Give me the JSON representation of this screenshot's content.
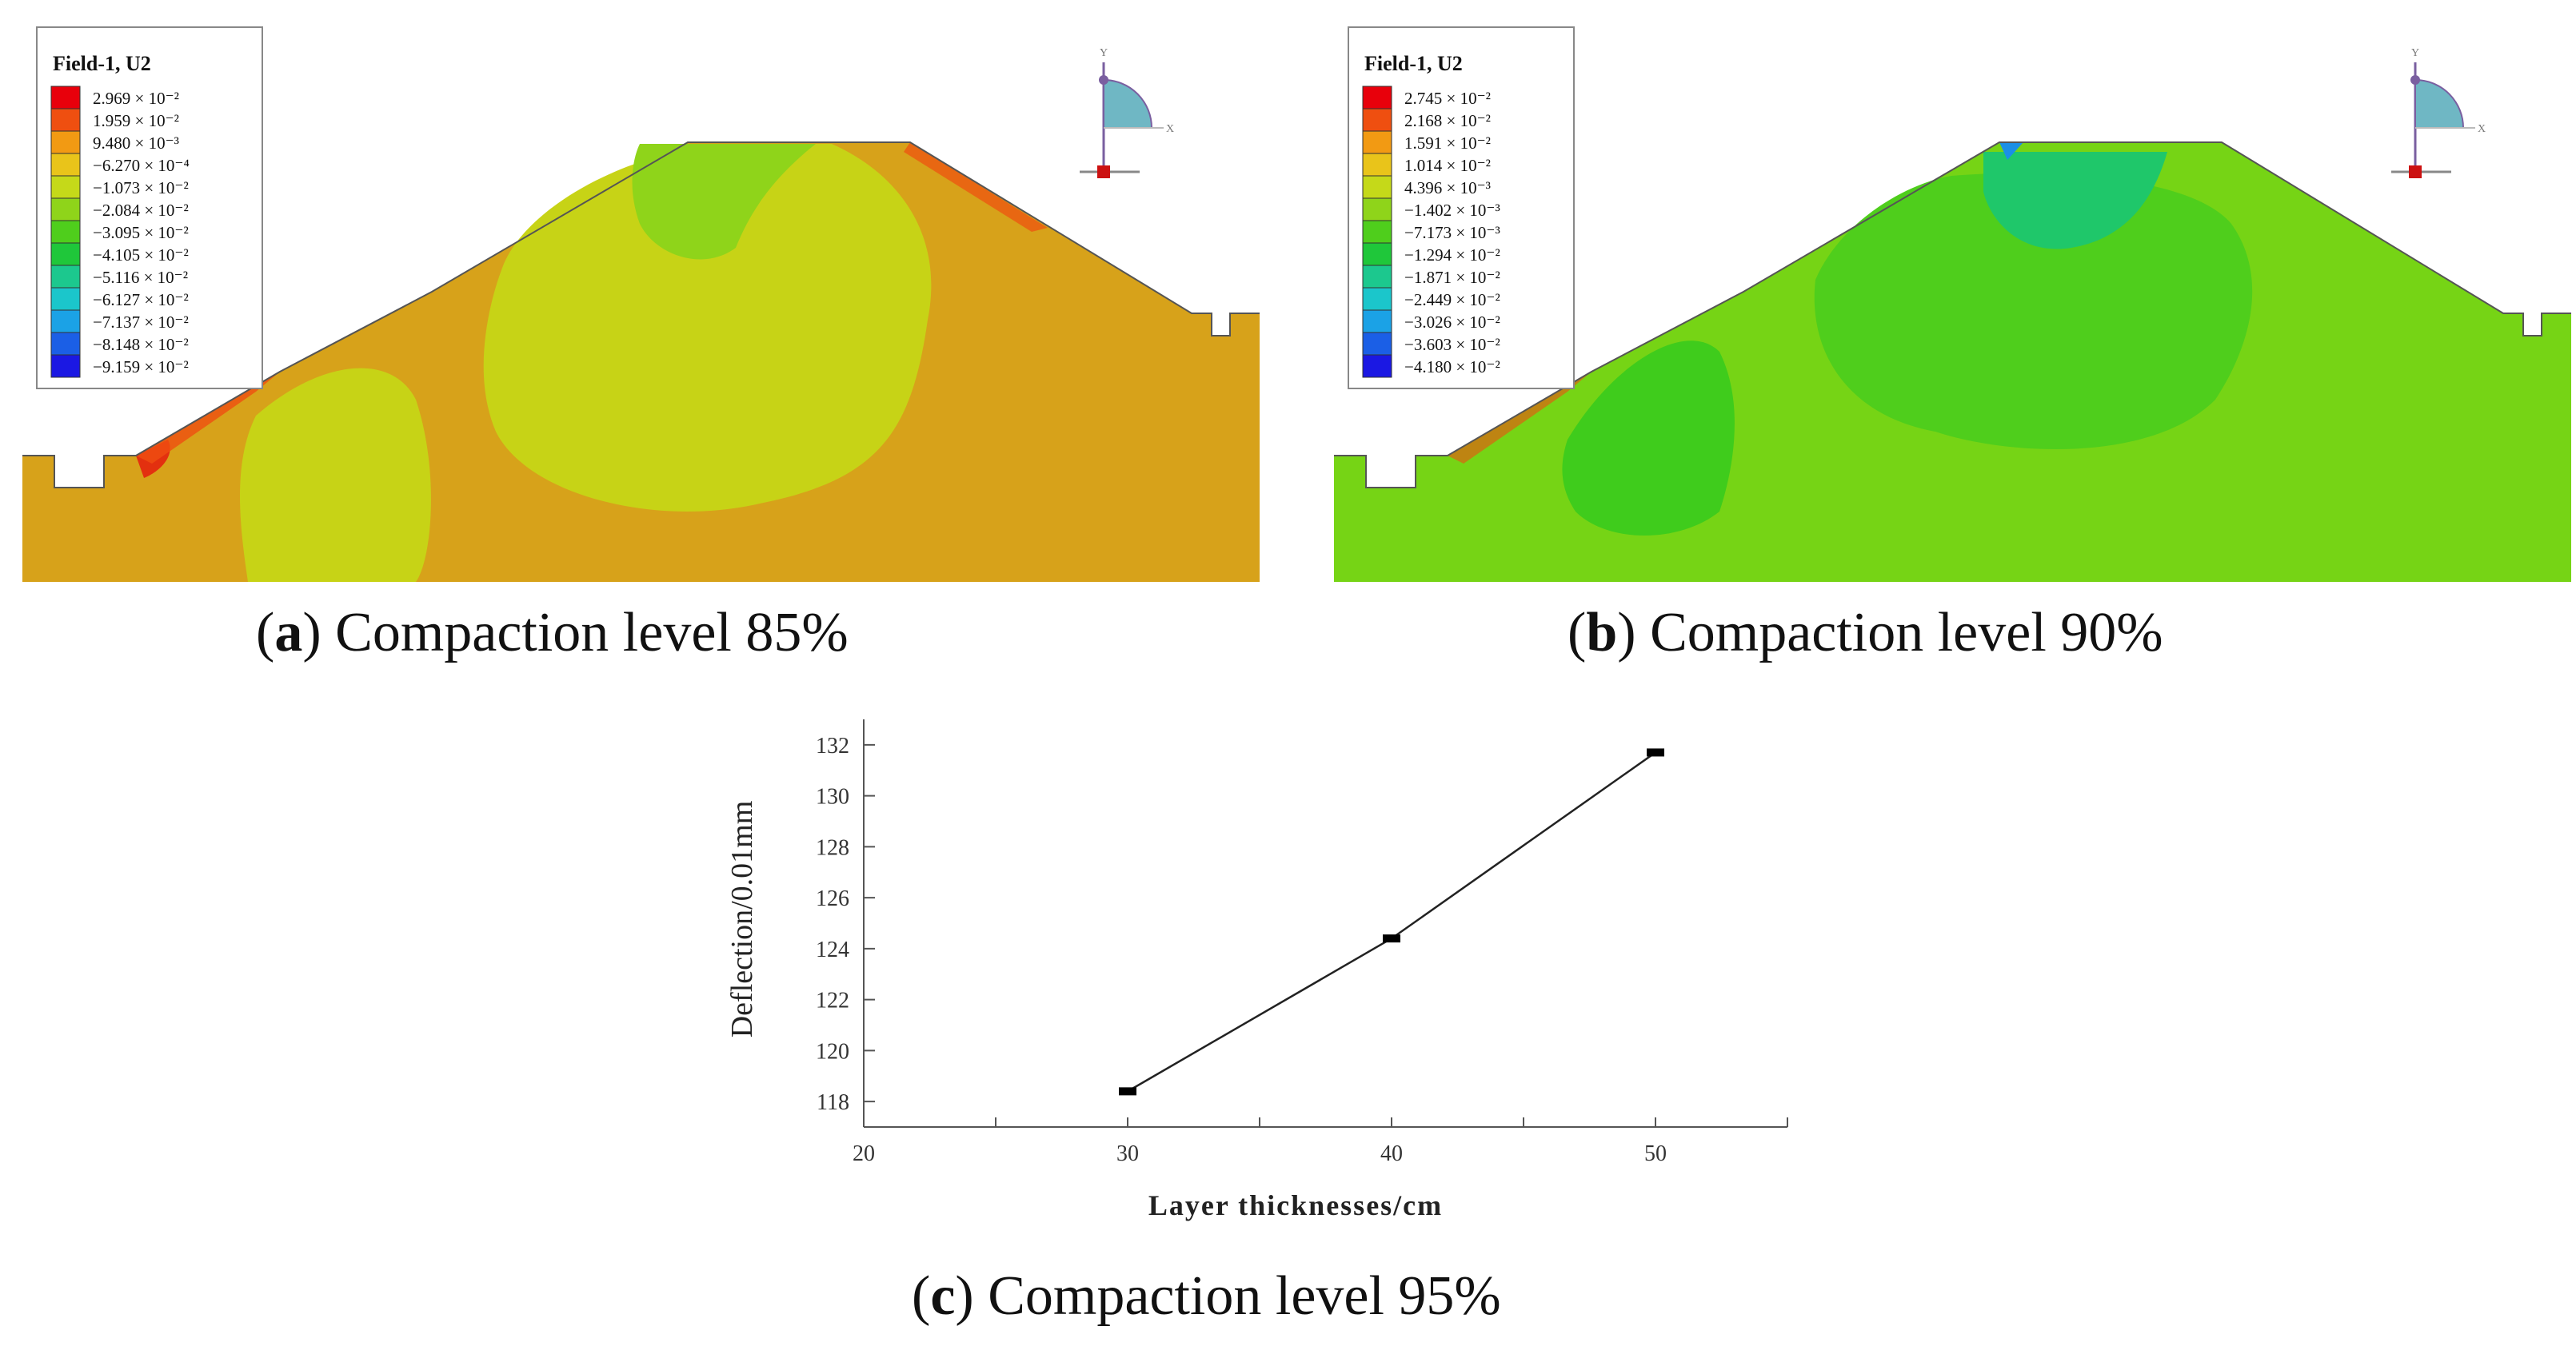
{
  "panels": [
    {
      "id": "a",
      "caption_letter": "a",
      "caption_text": "Compaction level 85%",
      "legend": {
        "title": "Field-1, U2",
        "entries": [
          "2.969 × 10⁻²",
          "1.959 × 10⁻²",
          "9.480 × 10⁻³",
          "−6.270 × 10⁻⁴",
          "−1.073 × 10⁻²",
          "−2.084 × 10⁻²",
          "−3.095 × 10⁻²",
          "−4.105 × 10⁻²",
          "−5.116 × 10⁻²",
          "−6.127 × 10⁻²",
          "−7.137 × 10⁻²",
          "−8.148 × 10⁻²",
          "−9.159 × 10⁻²"
        ]
      }
    },
    {
      "id": "b",
      "caption_letter": "b",
      "caption_text": "Compaction level 90%",
      "legend": {
        "title": "Field-1, U2",
        "entries": [
          "2.745 × 10⁻²",
          "2.168 × 10⁻²",
          "1.591 × 10⁻²",
          "1.014 × 10⁻²",
          "4.396 × 10⁻³",
          "−1.402 × 10⁻³",
          "−7.173 × 10⁻³",
          "−1.294 × 10⁻²",
          "−1.871 × 10⁻²",
          "−2.449 × 10⁻²",
          "−3.026 × 10⁻²",
          "−3.603 × 10⁻²",
          "−4.180 × 10⁻²"
        ]
      }
    }
  ],
  "legend_colors": [
    "#e8000b",
    "#ef4f10",
    "#f29a13",
    "#e9c41a",
    "#c5d919",
    "#8fd41a",
    "#4fce1c",
    "#1fc73a",
    "#1cc88e",
    "#1bc6cb",
    "#1ba2e6",
    "#1b5fe6",
    "#1b18e3"
  ],
  "triad_labels": {
    "y": "Y",
    "x": "X"
  },
  "caption_c": {
    "letter": "c",
    "text": "Compaction level 95%"
  },
  "chart_data": {
    "type": "line",
    "title": "",
    "xlabel": "Layer thicknesses/cm",
    "ylabel": "Deflection/0.01mm",
    "xlim": [
      20,
      55
    ],
    "ylim": [
      117,
      133
    ],
    "xticks": [
      20,
      30,
      40,
      50
    ],
    "yticks": [
      118,
      120,
      122,
      124,
      126,
      128,
      130,
      132
    ],
    "series": [
      {
        "name": "Deflection",
        "x": [
          30,
          40,
          50
        ],
        "y": [
          118.4,
          124.4,
          131.7
        ]
      }
    ],
    "grid": false
  }
}
